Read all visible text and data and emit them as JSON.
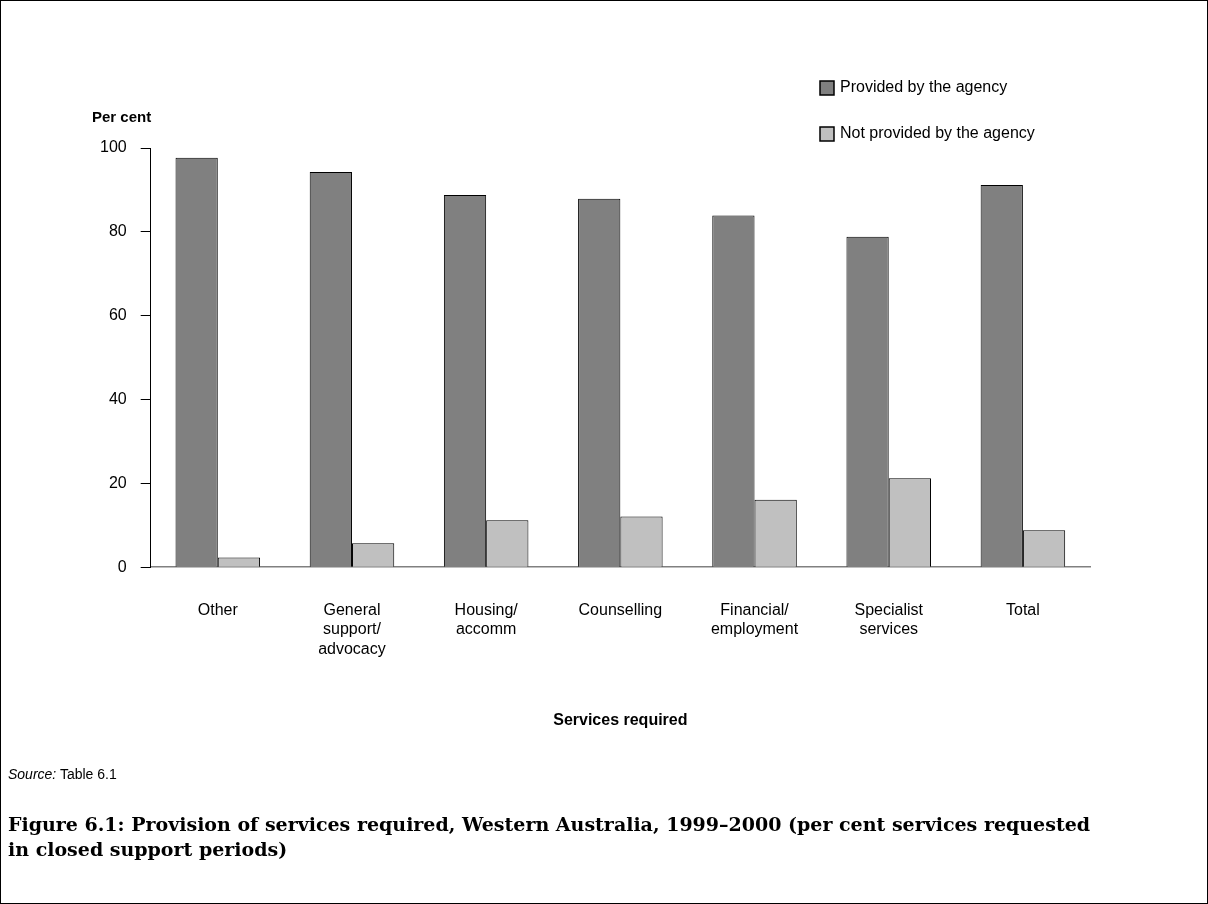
{
  "chart_data": {
    "type": "bar",
    "ylabel": "Per cent",
    "xlabel": "Services required",
    "title": "Figure 6.1: Provision of services required, Western Australia, 1999–2000 (per cent services requested in closed support periods)",
    "annotations": [
      "Source: Table 6.1"
    ],
    "categories": [
      "Other",
      "General\nsupport/\nadvocacy",
      "Housing/\naccomm",
      "Counselling",
      "Financial/\nemployment",
      "Specialist\nservices",
      "Total"
    ],
    "series": [
      {
        "name": "Provided by the agency",
        "color": "#808080",
        "values": [
          97.7,
          94.3,
          88.8,
          87.9,
          83.9,
          78.8,
          91.2
        ]
      },
      {
        "name": "Not provided by the agency",
        "color": "#c0c0c0",
        "values": [
          2.3,
          5.7,
          11.2,
          12.1,
          16.1,
          21.2,
          8.8
        ]
      }
    ],
    "ylim": [
      0,
      100
    ],
    "yticks": [
      0,
      20,
      40,
      60,
      80,
      100
    ],
    "grid": false,
    "legend": "top right"
  }
}
